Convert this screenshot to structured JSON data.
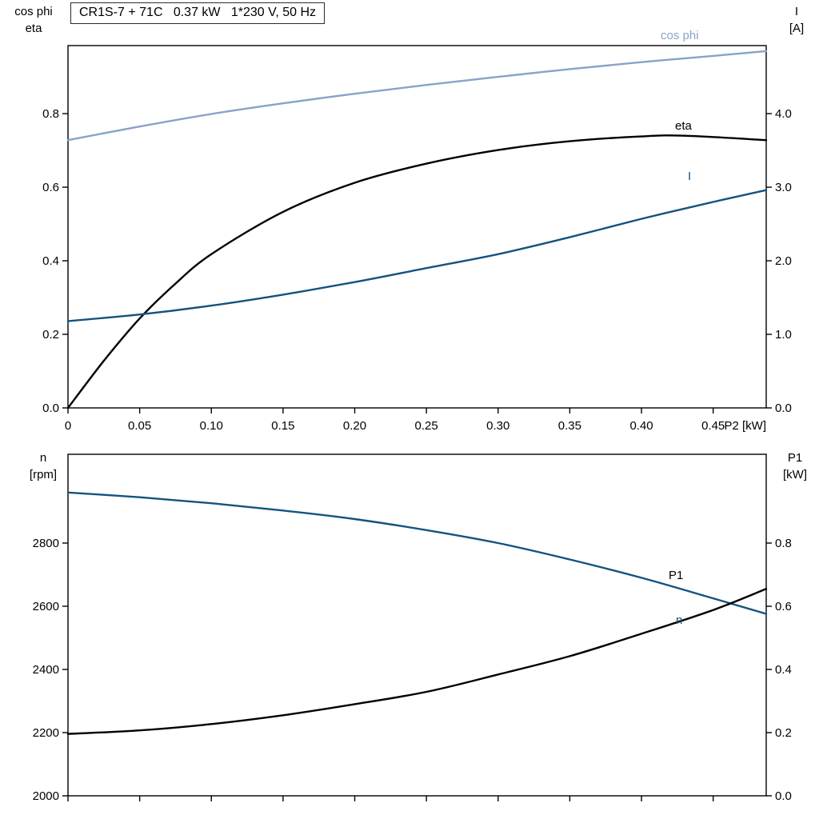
{
  "title_box": "CR1S-7 + 71C   0.37 kW   1*230 V, 50 Hz",
  "axis_headers": {
    "top_left_line1": "cos phi",
    "top_left_line2": "eta",
    "top_right_line1": "I",
    "top_right_line2": "[A]",
    "bottom_left_line1": "n",
    "bottom_left_line2": "[rpm]",
    "bottom_right_line1": "P1",
    "bottom_right_line2": "[kW]"
  },
  "colors": {
    "light_blue": "#87a3c8",
    "dark_blue": "#14537f",
    "black": "#000000",
    "frame": "#000000"
  },
  "chart_data": [
    {
      "type": "line",
      "x_label": "P2 [kW]",
      "x_range": [
        0,
        0.487
      ],
      "x_tick_values": [
        0,
        0.05,
        0.1,
        0.15,
        0.2,
        0.25,
        0.3,
        0.35,
        0.4,
        0.45
      ],
      "x_tick_labels": [
        "0",
        "0.05",
        "0.10",
        "0.15",
        "0.20",
        "0.25",
        "0.30",
        "0.35",
        "0.40",
        "0.45"
      ],
      "left_axis": {
        "label": "cos phi / eta",
        "range": [
          0,
          0.985
        ],
        "tick_values": [
          0,
          0.2,
          0.4,
          0.6,
          0.8
        ],
        "tick_labels": [
          "0.0",
          "0.2",
          "0.4",
          "0.6",
          "0.8"
        ]
      },
      "right_axis": {
        "label": "I [A]",
        "range": [
          0,
          4.925
        ],
        "tick_values": [
          0,
          1,
          2,
          3,
          4
        ],
        "tick_labels": [
          "0.0",
          "1.0",
          "2.0",
          "3.0",
          "4.0"
        ]
      },
      "series": [
        {
          "name": "cos phi",
          "axis": "left",
          "color": "#87a3c8",
          "x": [
            0,
            0.05,
            0.1,
            0.15,
            0.2,
            0.25,
            0.3,
            0.35,
            0.4,
            0.45,
            0.487
          ],
          "y": [
            0.728,
            0.765,
            0.799,
            0.828,
            0.854,
            0.878,
            0.9,
            0.921,
            0.94,
            0.957,
            0.97
          ]
        },
        {
          "name": "eta",
          "axis": "left",
          "color": "#000000",
          "x": [
            0,
            0.025,
            0.05,
            0.075,
            0.1,
            0.15,
            0.2,
            0.25,
            0.3,
            0.35,
            0.4,
            0.43,
            0.487
          ],
          "y": [
            0.0,
            0.128,
            0.243,
            0.338,
            0.418,
            0.533,
            0.612,
            0.664,
            0.701,
            0.725,
            0.738,
            0.74,
            0.728
          ]
        },
        {
          "name": "I",
          "axis": "right",
          "color": "#14537f",
          "x": [
            0,
            0.05,
            0.1,
            0.15,
            0.2,
            0.25,
            0.3,
            0.35,
            0.4,
            0.45,
            0.487
          ],
          "y": [
            1.18,
            1.27,
            1.39,
            1.54,
            1.71,
            1.9,
            2.09,
            2.32,
            2.57,
            2.8,
            2.96
          ]
        }
      ]
    },
    {
      "type": "line",
      "x_label": "",
      "x_range": [
        0,
        0.487
      ],
      "x_tick_values": [
        0,
        0.05,
        0.1,
        0.15,
        0.2,
        0.25,
        0.3,
        0.35,
        0.4,
        0.45
      ],
      "x_tick_labels": [],
      "left_axis": {
        "label": "n [rpm]",
        "range": [
          2000,
          3081
        ],
        "tick_values": [
          2000,
          2200,
          2400,
          2600,
          2800
        ],
        "tick_labels": [
          "2000",
          "2200",
          "2400",
          "2600",
          "2800"
        ]
      },
      "right_axis": {
        "label": "P1 [kW]",
        "range": [
          0,
          1.081
        ],
        "tick_values": [
          0,
          0.2,
          0.4,
          0.6,
          0.8
        ],
        "tick_labels": [
          "0.0",
          "0.2",
          "0.4",
          "0.6",
          "0.8"
        ]
      },
      "series": [
        {
          "name": "n",
          "axis": "left",
          "color": "#14537f",
          "x": [
            0,
            0.05,
            0.1,
            0.15,
            0.2,
            0.25,
            0.3,
            0.35,
            0.4,
            0.45,
            0.487
          ],
          "y": [
            2960,
            2945,
            2926,
            2903,
            2876,
            2841,
            2800,
            2748,
            2690,
            2625,
            2576
          ]
        },
        {
          "name": "P1",
          "axis": "right",
          "color": "#000000",
          "x": [
            0,
            0.05,
            0.1,
            0.15,
            0.2,
            0.25,
            0.3,
            0.35,
            0.4,
            0.45,
            0.487
          ],
          "y": [
            0.196,
            0.207,
            0.227,
            0.255,
            0.29,
            0.329,
            0.384,
            0.442,
            0.513,
            0.588,
            0.655
          ]
        }
      ]
    }
  ]
}
